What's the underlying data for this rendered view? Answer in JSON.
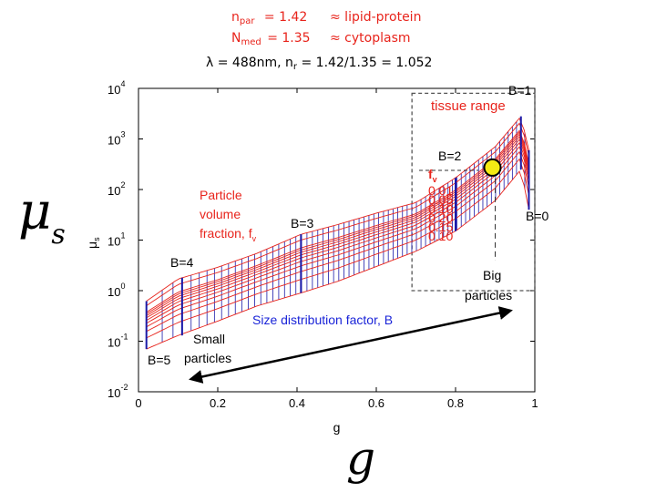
{
  "header": {
    "npar_sym": "n",
    "npar_sub": "par",
    "npar_val": "= 1.42",
    "npar_note": "≈ lipid-protein",
    "nmed_sym": "N",
    "nmed_sub": "med",
    "nmed_val": "= 1.35",
    "nmed_note": "≈ cytoplasm",
    "eq_left": "λ = 488nm, n",
    "eq_sub": "r",
    "eq_right": " = 1.42/1.35 = 1.052"
  },
  "big_labels": {
    "mu": "μ",
    "mu_sub": "s",
    "g": "g"
  },
  "chart_data": {
    "type": "line",
    "title": "",
    "xlabel": "g",
    "ylabel": "μs",
    "xlim": [
      0,
      1
    ],
    "ylim": [
      0.01,
      10000
    ],
    "yscale": "log",
    "grid": false,
    "xticks": [
      0,
      0.2,
      0.4,
      0.6,
      0.8,
      1
    ],
    "xtick_labels": [
      "0",
      "0.2",
      "0.4",
      "0.6",
      "0.8",
      "1"
    ],
    "yticks": [
      0.01,
      0.1,
      1,
      10,
      100,
      1000,
      10000
    ],
    "ytick_labels": [
      {
        "base": "10",
        "exp": "-2"
      },
      {
        "base": "10",
        "exp": "-1"
      },
      {
        "base": "10",
        "exp": "0"
      },
      {
        "base": "10",
        "exp": "1"
      },
      {
        "base": "10",
        "exp": "2"
      },
      {
        "base": "10",
        "exp": "3"
      },
      {
        "base": "10",
        "exp": "4"
      }
    ],
    "fv_values": [
      0.01,
      0.02,
      0.03,
      0.04,
      0.05,
      0.06,
      0.07,
      0.08,
      0.09,
      0.1,
      0.15,
      0.2
    ],
    "b_lines": [
      {
        "label": "B=5",
        "g": 0.02,
        "mu_low": 0.07,
        "mu_high": 0.62
      },
      {
        "label": "B=4",
        "g": 0.11,
        "mu_low": 0.13,
        "mu_high": 1.8
      },
      {
        "label": "B=3",
        "g": 0.41,
        "mu_low": 0.9,
        "mu_high": 13
      },
      {
        "label": "B=2",
        "g": 0.8,
        "mu_low": 15,
        "mu_high": 170
      },
      {
        "label": "B=1",
        "g": 0.965,
        "mu_low": 250,
        "mu_high": 2800
      },
      {
        "label": "B=0",
        "g": 0.985,
        "mu_low": 40,
        "mu_high": 600
      }
    ],
    "curve_top": [
      [
        0.02,
        0.62
      ],
      [
        0.1,
        1.7
      ],
      [
        0.2,
        2.9
      ],
      [
        0.3,
        5.5
      ],
      [
        0.41,
        13
      ],
      [
        0.5,
        20
      ],
      [
        0.6,
        34
      ],
      [
        0.7,
        55
      ],
      [
        0.8,
        170
      ],
      [
        0.9,
        700
      ],
      [
        0.965,
        2800
      ],
      [
        0.985,
        600
      ]
    ],
    "curve_bottom": [
      [
        0.02,
        0.07
      ],
      [
        0.1,
        0.13
      ],
      [
        0.2,
        0.25
      ],
      [
        0.3,
        0.5
      ],
      [
        0.41,
        0.9
      ],
      [
        0.5,
        1.5
      ],
      [
        0.6,
        3
      ],
      [
        0.7,
        6
      ],
      [
        0.8,
        15
      ],
      [
        0.9,
        60
      ],
      [
        0.965,
        250
      ],
      [
        0.985,
        40
      ]
    ],
    "tissue_range": {
      "g": [
        0.69,
        1.0
      ],
      "mu": [
        1,
        8000
      ],
      "label": "tissue range"
    },
    "marker_point": {
      "g": 0.9,
      "mu": 250,
      "color": "#f5ea14"
    },
    "fv_legend": {
      "title": "f",
      "title_sub": "v",
      "labels": [
        "0.01",
        "0.05",
        "0.10",
        "0.20",
        "0.15",
        "0.10"
      ]
    },
    "annotations": {
      "particle_volume": [
        "Particle",
        "volume",
        "fraction, f"
      ],
      "particle_volume_sub": "v",
      "size_dist": "Size distribution factor, B",
      "small": [
        "Small",
        "particles"
      ],
      "big": [
        "Big",
        "particles"
      ],
      "b_labels": {
        "B5": "B=5",
        "B4": "B=4",
        "B3": "B=3",
        "B2": "B=2",
        "B1": "B=1",
        "B0": "B=0"
      }
    },
    "colors": {
      "red_mesh": "#e8241c",
      "blue_mesh": "#1a1aa8",
      "axis": "#000000",
      "annotation_red": "#e8241c",
      "annotation_blue": "#1a24d8"
    }
  }
}
